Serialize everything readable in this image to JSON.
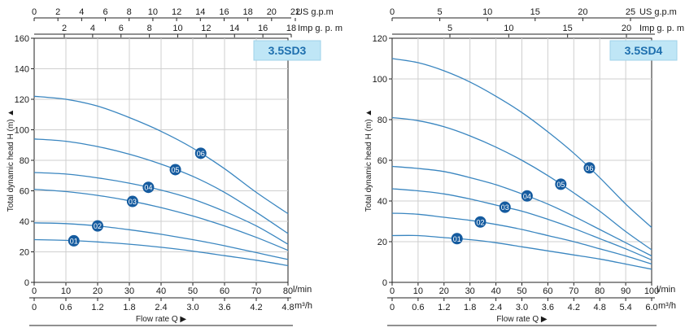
{
  "chart_data": [
    {
      "type": "line",
      "model_label": "3.5SD3",
      "ylabel": "Total dynamic head H (m)",
      "xlabel": "Flow rate Q",
      "x_unit_primary": "l/min",
      "x_unit_secondary": "m³/h",
      "top_unit_us": "US g.p.m",
      "top_unit_imp": "Imp g. p. m",
      "xlim": [
        0,
        80
      ],
      "ylim": [
        0,
        160
      ],
      "y_ticks": [
        "0",
        "20",
        "40",
        "60",
        "80",
        "100",
        "120",
        "140",
        "160"
      ],
      "x_ticks_lmin": [
        "0",
        "10",
        "20",
        "30",
        "40",
        "50",
        "60",
        "70",
        "80"
      ],
      "x_ticks_m3h": [
        "0",
        "0.6",
        "1.2",
        "1.8",
        "2.4",
        "3.0",
        "3.6",
        "4.2",
        "4.8"
      ],
      "top_ticks_us": [
        "0",
        "2",
        "4",
        "6",
        "8",
        "10",
        "12",
        "14",
        "16",
        "18",
        "20",
        "22"
      ],
      "top_ticks_imp": [
        "2",
        "4",
        "6",
        "8",
        "10",
        "12",
        "14",
        "16",
        "18"
      ],
      "grid": true,
      "series": [
        {
          "name": "01",
          "x": [
            0,
            10,
            20,
            30,
            40,
            50,
            60,
            70,
            80
          ],
          "y": [
            28,
            27.5,
            26.5,
            25,
            23,
            20.5,
            17.5,
            14.5,
            11
          ]
        },
        {
          "name": "02",
          "x": [
            0,
            10,
            20,
            30,
            40,
            50,
            60,
            70,
            80
          ],
          "y": [
            39,
            38.5,
            37,
            34.5,
            31.5,
            28,
            24,
            19.5,
            15
          ]
        },
        {
          "name": "03",
          "x": [
            0,
            10,
            20,
            30,
            40,
            50,
            60,
            70,
            80
          ],
          "y": [
            61,
            59.5,
            57,
            53.5,
            49,
            43.5,
            37,
            29.5,
            21
          ]
        },
        {
          "name": "04",
          "x": [
            0,
            10,
            20,
            30,
            40,
            50,
            60,
            70,
            80
          ],
          "y": [
            72,
            71,
            68.5,
            65,
            60.5,
            54.5,
            46.5,
            37,
            25
          ]
        },
        {
          "name": "05",
          "x": [
            0,
            10,
            20,
            30,
            40,
            50,
            60,
            70,
            80
          ],
          "y": [
            94,
            92.5,
            89,
            84,
            77.5,
            69.5,
            59,
            46,
            32
          ]
        },
        {
          "name": "06",
          "x": [
            0,
            10,
            20,
            30,
            40,
            50,
            60,
            70,
            80
          ],
          "y": [
            122,
            120,
            115.5,
            108,
            99,
            88,
            74.5,
            59,
            45
          ]
        }
      ],
      "series_labels_at_x": [
        12.5,
        20,
        31,
        36,
        44.5,
        52.5
      ]
    },
    {
      "type": "line",
      "model_label": "3.5SD4",
      "ylabel": "Total dynamic head H (m)",
      "xlabel": "Flow rate Q",
      "x_unit_primary": "l/min",
      "x_unit_secondary": "m³/h",
      "top_unit_us": "US g.p.m",
      "top_unit_imp": "Imp g. p. m",
      "xlim": [
        0,
        100
      ],
      "ylim": [
        0,
        120
      ],
      "y_ticks": [
        "0",
        "20",
        "40",
        "60",
        "80",
        "100",
        "120"
      ],
      "x_ticks_lmin": [
        "0",
        "10",
        "20",
        "30",
        "40",
        "50",
        "60",
        "70",
        "80",
        "90",
        "100"
      ],
      "x_ticks_m3h": [
        "0",
        "0.6",
        "1.2",
        "1.8",
        "2.4",
        "3.0",
        "3.6",
        "4.2",
        "4.8",
        "5.4",
        "6.0"
      ],
      "top_ticks_us": [
        "0",
        "5",
        "10",
        "15",
        "20",
        "25"
      ],
      "top_ticks_imp": [
        "5",
        "10",
        "15",
        "20"
      ],
      "grid": true,
      "series": [
        {
          "name": "01",
          "x": [
            0,
            10,
            20,
            30,
            40,
            50,
            60,
            70,
            80,
            90,
            100
          ],
          "y": [
            23,
            23,
            22,
            21,
            19.5,
            17.5,
            15.5,
            13.5,
            11.5,
            9,
            6.5
          ]
        },
        {
          "name": "02",
          "x": [
            0,
            10,
            20,
            30,
            40,
            50,
            60,
            70,
            80,
            90,
            100
          ],
          "y": [
            34,
            33.5,
            32,
            30.5,
            28.5,
            26,
            23,
            20,
            16.5,
            13,
            9
          ]
        },
        {
          "name": "03",
          "x": [
            0,
            10,
            20,
            30,
            40,
            50,
            60,
            70,
            80,
            90,
            100
          ],
          "y": [
            46,
            45,
            43.5,
            41,
            38,
            35,
            31,
            26.5,
            21.5,
            16.5,
            11
          ]
        },
        {
          "name": "04",
          "x": [
            0,
            10,
            20,
            30,
            40,
            50,
            60,
            70,
            80,
            90,
            100
          ],
          "y": [
            57,
            56,
            54.5,
            51.5,
            48,
            43.5,
            38.5,
            32.5,
            26,
            19.5,
            13
          ]
        },
        {
          "name": "05",
          "x": [
            0,
            10,
            20,
            30,
            40,
            50,
            60,
            70,
            80,
            90,
            100
          ],
          "y": [
            81,
            79.5,
            76.5,
            72,
            66.5,
            60,
            52.5,
            44,
            35,
            25,
            16
          ]
        },
        {
          "name": "06",
          "x": [
            0,
            10,
            20,
            30,
            40,
            50,
            60,
            70,
            80,
            90,
            100
          ],
          "y": [
            110,
            108,
            104,
            98.5,
            91.5,
            83.5,
            74,
            63.5,
            51.5,
            38.5,
            27
          ]
        }
      ],
      "series_labels_at_x": [
        25,
        34,
        43.5,
        52,
        65,
        76
      ]
    }
  ],
  "colors": {
    "curve": "#3a86c0",
    "marker": "#155b9f",
    "marker_text": "#ffffff",
    "grid": "#cfcfcf",
    "label_box": "#bfe6f6",
    "label_text": "#1e6fae",
    "axis": "#222222"
  }
}
